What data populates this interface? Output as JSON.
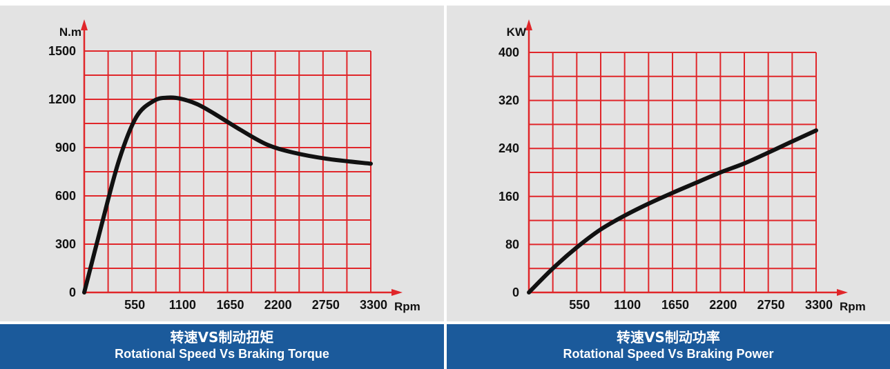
{
  "colors": {
    "grid": "#e0262a",
    "curve": "#111111",
    "caption_bg": "#1b5a9b",
    "plot_bg": "#e3e3e3"
  },
  "chart_data": [
    {
      "type": "line",
      "title": "转速VS制动扭矩",
      "subtitle": "Rotational Speed Vs Braking Torque",
      "xlabel": "Rpm",
      "ylabel": "N.m",
      "x_ticks": [
        "550",
        "1100",
        "1650",
        "2200",
        "2750",
        "3300"
      ],
      "y_ticks": [
        "0",
        "300",
        "600",
        "900",
        "1200",
        "1500"
      ],
      "xlim": [
        0,
        3300
      ],
      "ylim": [
        0,
        1500
      ],
      "grid": true,
      "series": [
        {
          "x": [
            0,
            200,
            400,
            600,
            800,
            950,
            1100,
            1300,
            1500,
            1800,
            2100,
            2400,
            2800,
            3300
          ],
          "y": [
            0,
            420,
            820,
            1090,
            1190,
            1210,
            1205,
            1170,
            1110,
            1010,
            920,
            870,
            830,
            800
          ]
        }
      ]
    },
    {
      "type": "line",
      "title": "转速VS制动功率",
      "subtitle": "Rotational Speed Vs Braking Power",
      "xlabel": "Rpm",
      "ylabel": "KW",
      "x_ticks": [
        "550",
        "1100",
        "1650",
        "2200",
        "2750",
        "3300"
      ],
      "y_ticks": [
        "0",
        "80",
        "160",
        "240",
        "320",
        "400"
      ],
      "xlim": [
        0,
        3300
      ],
      "ylim": [
        0,
        400
      ],
      "grid": true,
      "series": [
        {
          "x": [
            0,
            275,
            550,
            825,
            1100,
            1375,
            1650,
            1925,
            2200,
            2475,
            2750,
            3000,
            3300
          ],
          "y": [
            0,
            40,
            75,
            105,
            128,
            148,
            166,
            183,
            200,
            215,
            233,
            250,
            270
          ]
        }
      ]
    }
  ]
}
